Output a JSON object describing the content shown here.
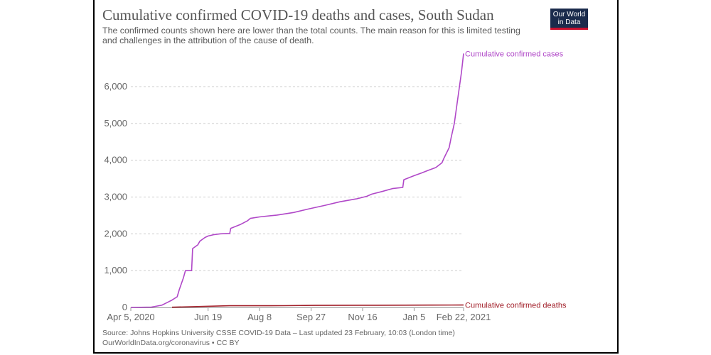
{
  "header": {
    "title": "Cumulative confirmed COVID-19 deaths and cases, South Sudan",
    "subtitle": "The confirmed counts shown here are lower than the total counts. The main reason for this is limited testing and challenges in the attribution of the cause of death.",
    "logo_line1": "Our World",
    "logo_line2": "in Data"
  },
  "footer": {
    "source": "Source: Johns Hopkins University CSSE COVID-19 Data – Last updated 23 February, 10:03 (London time)",
    "credit": "OurWorldInData.org/coronavirus • CC BY"
  },
  "colors": {
    "cases": "#b048c8",
    "deaths": "#a2202a",
    "grid": "#cccccc",
    "brand_bg": "#1a2b4c",
    "brand_accent": "#c8102e"
  },
  "chart_data": {
    "type": "line",
    "title": "Cumulative confirmed COVID-19 deaths and cases, South Sudan",
    "xlabel": "",
    "ylabel": "",
    "ylim": [
      0,
      7000
    ],
    "yticks": [
      0,
      1000,
      2000,
      3000,
      4000,
      5000,
      6000
    ],
    "ytick_labels": [
      "0",
      "1,000",
      "2,000",
      "3,000",
      "4,000",
      "5,000",
      "6,000"
    ],
    "xrange": [
      "2020-04-05",
      "2021-02-22"
    ],
    "xticks": [
      "2020-04-05",
      "2020-06-19",
      "2020-08-08",
      "2020-09-27",
      "2020-11-16",
      "2021-01-05",
      "2021-02-22"
    ],
    "xtick_labels": [
      "Apr 5, 2020",
      "Jun 19",
      "Aug 8",
      "Sep 27",
      "Nov 16",
      "Jan 5",
      "Feb 22, 2021"
    ],
    "grid": "horizontal dashed",
    "series": [
      {
        "name": "Cumulative confirmed cases",
        "key": "cases",
        "x": [
          "2020-04-05",
          "2020-04-25",
          "2020-05-05",
          "2020-05-10",
          "2020-05-15",
          "2020-05-20",
          "2020-05-22",
          "2020-05-26",
          "2020-05-28",
          "2020-06-03",
          "2020-06-04",
          "2020-06-09",
          "2020-06-11",
          "2020-06-16",
          "2020-06-19",
          "2020-06-25",
          "2020-07-01",
          "2020-07-10",
          "2020-07-11",
          "2020-07-20",
          "2020-07-27",
          "2020-07-30",
          "2020-08-08",
          "2020-08-25",
          "2020-09-10",
          "2020-09-25",
          "2020-10-10",
          "2020-10-25",
          "2020-11-10",
          "2020-11-20",
          "2020-11-25",
          "2020-12-05",
          "2020-12-15",
          "2020-12-25",
          "2020-12-26",
          "2021-01-05",
          "2021-01-12",
          "2021-01-19",
          "2021-01-26",
          "2021-02-01",
          "2021-02-03",
          "2021-02-08",
          "2021-02-10",
          "2021-02-13",
          "2021-02-16",
          "2021-02-20",
          "2021-02-22"
        ],
        "y": [
          0,
          10,
          60,
          130,
          200,
          290,
          480,
          800,
          1000,
          1000,
          1600,
          1700,
          1800,
          1900,
          1940,
          1980,
          2000,
          2010,
          2150,
          2250,
          2350,
          2420,
          2460,
          2510,
          2580,
          2680,
          2770,
          2870,
          2950,
          3020,
          3080,
          3150,
          3230,
          3260,
          3470,
          3580,
          3650,
          3730,
          3800,
          3930,
          4060,
          4340,
          4620,
          5000,
          5600,
          6400,
          6900
        ]
      },
      {
        "name": "Cumulative confirmed deaths",
        "key": "deaths",
        "x": [
          "2020-05-15",
          "2020-06-05",
          "2020-07-10",
          "2020-09-01",
          "2020-10-01",
          "2020-12-01",
          "2021-01-20",
          "2021-02-22"
        ],
        "y": [
          6,
          22,
          46,
          48,
          55,
          60,
          63,
          66
        ]
      }
    ]
  }
}
